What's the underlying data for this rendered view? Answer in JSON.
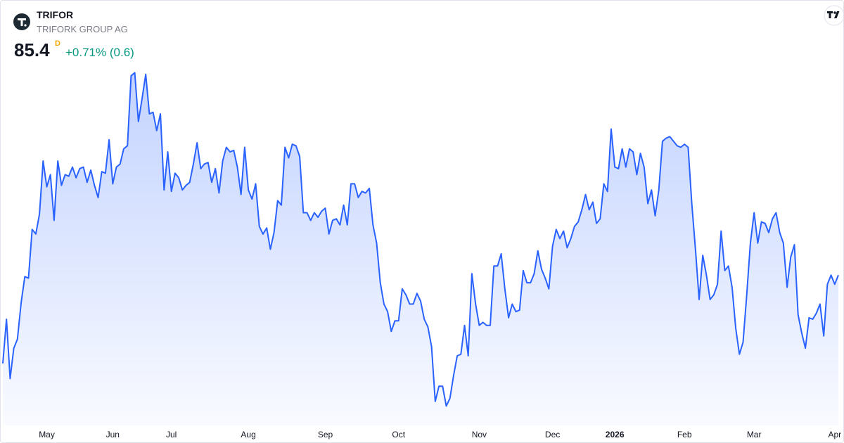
{
  "header": {
    "symbol": "TRIFOR",
    "company": "TRIFORK GROUP AG",
    "price": "85.4",
    "interval": "D",
    "change": "+0.71% (0.6)"
  },
  "chart_data": {
    "type": "area",
    "color": "#2962ff",
    "ylim": [
      74,
      102
    ],
    "categories": [
      null,
      null,
      null,
      null,
      null,
      null,
      null,
      null,
      null,
      null,
      null,
      null,
      "May",
      null,
      null,
      null,
      null,
      null,
      null,
      null,
      null,
      null,
      null,
      null,
      null,
      null,
      null,
      null,
      null,
      null,
      "Jun",
      null,
      null,
      null,
      null,
      null,
      null,
      null,
      null,
      null,
      null,
      null,
      null,
      null,
      null,
      null,
      "Jul",
      null,
      null,
      null,
      null,
      null,
      null,
      null,
      null,
      null,
      null,
      null,
      null,
      null,
      null,
      null,
      null,
      null,
      null,
      null,
      null,
      "Aug",
      null,
      null,
      null,
      null,
      null,
      null,
      null,
      null,
      null,
      null,
      null,
      null,
      null,
      null,
      null,
      null,
      null,
      null,
      null,
      null,
      "Sep",
      null,
      null,
      null,
      null,
      null,
      null,
      null,
      null,
      null,
      null,
      null,
      null,
      null,
      null,
      null,
      null,
      null,
      null,
      null,
      "Oct",
      null,
      null,
      null,
      null,
      null,
      null,
      null,
      null,
      null,
      null,
      null,
      null,
      null,
      null,
      null,
      null,
      null,
      null,
      null,
      null,
      null,
      "Nov",
      null,
      null,
      null,
      null,
      null,
      null,
      null,
      null,
      null,
      null,
      null,
      null,
      null,
      null,
      null,
      null,
      null,
      null,
      null,
      "Dec",
      null,
      null,
      null,
      null,
      null,
      null,
      null,
      null,
      null,
      null,
      null,
      null,
      null,
      null,
      null,
      null,
      "2026",
      null,
      null,
      null,
      null,
      null,
      null,
      null,
      null,
      null,
      null,
      null,
      null,
      null,
      null,
      null,
      null,
      null,
      null,
      "Feb",
      null,
      null,
      null,
      null,
      null,
      null,
      null,
      null,
      null,
      null,
      null,
      null,
      null,
      null,
      null,
      null,
      null,
      null,
      "Mar",
      null,
      null,
      null,
      null,
      null,
      null,
      null,
      null,
      null,
      null,
      null,
      null,
      null,
      null,
      null,
      null,
      null,
      null,
      null,
      null,
      null,
      "Apr",
      null
    ],
    "values": [
      79.6,
      82.5,
      78.6,
      80.6,
      81.2,
      83.6,
      85.3,
      85.2,
      88.4,
      88.1,
      89.4,
      92.9,
      91.2,
      92.0,
      89.0,
      92.9,
      91.3,
      92.0,
      91.9,
      92.5,
      91.8,
      92.4,
      92.5,
      91.5,
      92.3,
      91.3,
      90.5,
      92.2,
      92.1,
      94.3,
      91.4,
      92.5,
      92.7,
      93.7,
      93.9,
      98.5,
      98.7,
      95.5,
      97.0,
      98.6,
      96.0,
      96.1,
      94.9,
      96.0,
      91.0,
      93.5,
      90.9,
      92.1,
      91.8,
      91.0,
      91.3,
      91.5,
      92.7,
      94.1,
      92.4,
      92.7,
      92.8,
      91.5,
      92.4,
      90.8,
      92.9,
      93.8,
      93.5,
      93.6,
      92.5,
      90.7,
      93.8,
      91.0,
      90.4,
      91.4,
      88.6,
      88.1,
      88.5,
      87.1,
      88.2,
      90.3,
      90.0,
      93.8,
      93.1,
      94.0,
      93.9,
      93.2,
      89.5,
      89.5,
      89.0,
      89.5,
      89.2,
      89.6,
      89.8,
      88.1,
      89.0,
      89.1,
      88.7,
      90.0,
      88.7,
      91.4,
      91.4,
      90.5,
      90.9,
      90.8,
      91.1,
      88.7,
      87.5,
      84.9,
      83.5,
      83.0,
      81.7,
      82.4,
      82.4,
      84.5,
      84.1,
      83.5,
      83.5,
      84.2,
      83.7,
      82.5,
      82.0,
      80.7,
      77.1,
      78.1,
      78.1,
      76.8,
      77.3,
      78.8,
      80.1,
      80.2,
      82.1,
      80.1,
      85.5,
      83.5,
      82.1,
      82.3,
      82.1,
      82.1,
      86.0,
      86.0,
      86.8,
      84.5,
      82.6,
      83.5,
      83.0,
      83.1,
      85.7,
      84.9,
      84.9,
      85.5,
      87.0,
      85.8,
      85.2,
      84.5,
      87.3,
      88.4,
      87.8,
      88.3,
      87.2,
      87.8,
      88.6,
      88.9,
      89.7,
      90.7,
      89.7,
      90.2,
      88.8,
      89.1,
      91.4,
      90.9,
      95.0,
      92.5,
      92.4,
      93.7,
      92.5,
      93.7,
      93.5,
      92.0,
      93.4,
      92.5,
      90.1,
      91.0,
      89.3,
      91.0,
      94.2,
      94.4,
      94.5,
      94.2,
      93.9,
      93.8,
      94.0,
      93.8,
      90.1,
      87.1,
      83.8,
      86.7,
      85.4,
      83.8,
      84.1,
      84.8,
      88.3,
      85.7,
      86.0,
      84.6,
      81.9,
      80.2,
      81.0,
      84.1,
      87.5,
      89.5,
      87.5,
      88.9,
      88.8,
      88.2,
      89.1,
      89.5,
      88.2,
      87.5,
      84.6,
      86.6,
      87.4,
      82.8,
      81.6,
      80.6,
      82.6,
      82.5,
      82.9,
      83.5,
      81.4,
      84.8,
      85.4,
      84.8,
      85.4
    ]
  }
}
